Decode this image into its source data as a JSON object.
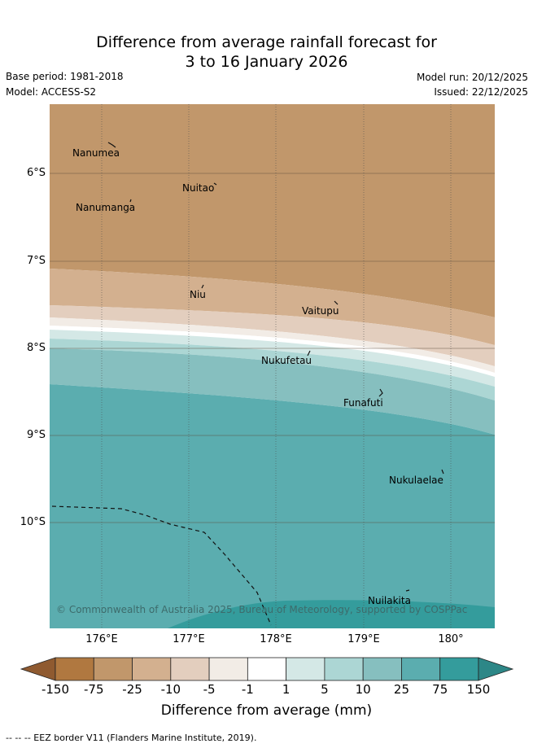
{
  "header": {
    "title_line1": "Difference from average rainfall forecast for",
    "title_line2": "3 to 16 January 2026",
    "base_period": "Base period: 1981-2018",
    "model": "Model: ACCESS-S2",
    "model_run": "Model run: 20/12/2025",
    "issued": "Issued: 22/12/2025"
  },
  "map": {
    "latitude_labels": [
      "6°S",
      "7°S",
      "8°S",
      "9°S",
      "10°S"
    ],
    "longitude_labels": [
      "176°E",
      "177°E",
      "178°E",
      "179°E",
      "180°"
    ],
    "islands": [
      "Nanumea",
      "Nuitao",
      "Nanumanga",
      "Niu",
      "Vaitupu",
      "Nukufetau",
      "Funafuti",
      "Nukulaelae",
      "Nuilakita"
    ],
    "copyright": "© Commonwealth of Australia 2025, Bureau of Meteorology, supported by COSPPac"
  },
  "colorbar": {
    "labels": [
      "-150",
      "-75",
      "-25",
      "-10",
      "-5",
      "-1",
      "1",
      "5",
      "10",
      "25",
      "75",
      "150"
    ],
    "colors": [
      "#8f5a30",
      "#b07840",
      "#c1976b",
      "#d3b08f",
      "#e3cebe",
      "#f2ece6",
      "#ffffff",
      "#d4e8e6",
      "#acd6d4",
      "#86bfbf",
      "#5badaf",
      "#349c9c",
      "#2d8787"
    ],
    "title": "Difference from average (mm)"
  },
  "legend": {
    "eez_note": "--  --  -- EEZ border V11 (Flanders Marine Institute, 2019)."
  }
}
